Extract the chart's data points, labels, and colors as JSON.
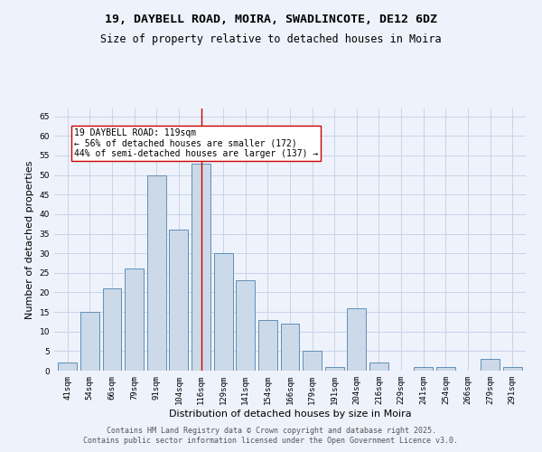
{
  "title_line1": "19, DAYBELL ROAD, MOIRA, SWADLINCOTE, DE12 6DZ",
  "title_line2": "Size of property relative to detached houses in Moira",
  "xlabel": "Distribution of detached houses by size in Moira",
  "ylabel": "Number of detached properties",
  "categories": [
    "41sqm",
    "54sqm",
    "66sqm",
    "79sqm",
    "91sqm",
    "104sqm",
    "116sqm",
    "129sqm",
    "141sqm",
    "154sqm",
    "166sqm",
    "179sqm",
    "191sqm",
    "204sqm",
    "216sqm",
    "229sqm",
    "241sqm",
    "254sqm",
    "266sqm",
    "279sqm",
    "291sqm"
  ],
  "values": [
    2,
    15,
    21,
    26,
    50,
    36,
    53,
    30,
    23,
    13,
    12,
    5,
    1,
    16,
    2,
    0,
    1,
    1,
    0,
    3,
    1
  ],
  "bar_color": "#ccd9e8",
  "bar_edge_color": "#6090b8",
  "highlight_index": 6,
  "highlight_line_color": "#cc0000",
  "annotation_text": "19 DAYBELL ROAD: 119sqm\n← 56% of detached houses are smaller (172)\n44% of semi-detached houses are larger (137) →",
  "annotation_box_color": "#ffffff",
  "annotation_box_edge": "#cc0000",
  "ylim": [
    0,
    67
  ],
  "yticks": [
    0,
    5,
    10,
    15,
    20,
    25,
    30,
    35,
    40,
    45,
    50,
    55,
    60,
    65
  ],
  "grid_color": "#c8d4e8",
  "background_color": "#eef2fb",
  "footer_line1": "Contains HM Land Registry data © Crown copyright and database right 2025.",
  "footer_line2": "Contains public sector information licensed under the Open Government Licence v3.0.",
  "title_fontsize": 9.5,
  "subtitle_fontsize": 8.5,
  "tick_fontsize": 6.5,
  "label_fontsize": 8,
  "annotation_fontsize": 7,
  "footer_fontsize": 6
}
